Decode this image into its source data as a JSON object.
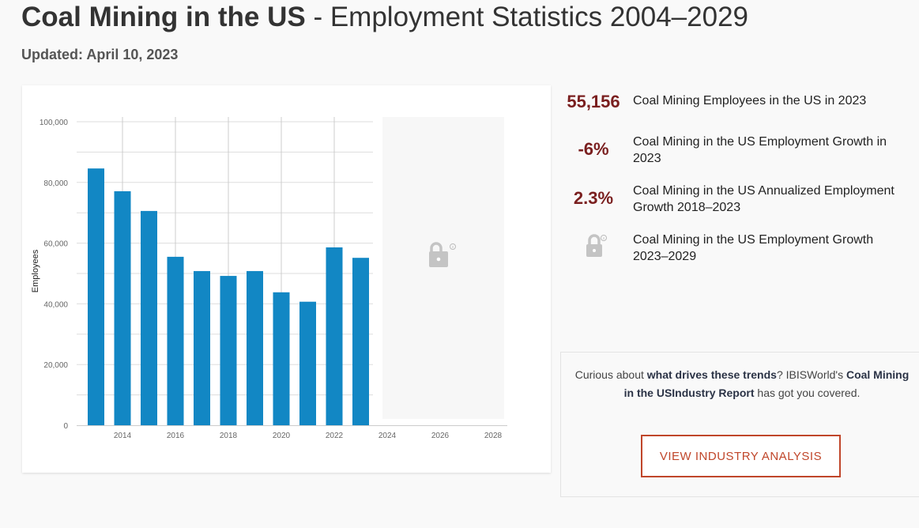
{
  "header": {
    "title_bold": "Coal Mining in the US",
    "title_rest": " - Employment Statistics 2004–2029",
    "updated": "Updated: April 10, 2023"
  },
  "stats": [
    {
      "value": "55,156",
      "label": "Coal Mining Employees in the US in 2023"
    },
    {
      "value": "-6%",
      "label": "Coal Mining in the US Employment Growth in 2023"
    },
    {
      "value": "2.3%",
      "label": "Coal Mining in the US Annualized Employment Growth 2018–2023"
    },
    {
      "value": null,
      "icon": "lock-icon",
      "label": "Coal Mining in the US Employment Growth 2023–2029"
    }
  ],
  "cta": {
    "t1": "Curious about ",
    "b1": "what drives these trends",
    "t2": "? IBISWorld's ",
    "b2": "Coal Mining in the USIndustry Report",
    "t3": " has got you covered.",
    "button": "VIEW INDUSTRY ANALYSIS"
  },
  "colors": {
    "bar": "#1287c4",
    "accent": "#7a1f1f",
    "button": "#c0462a"
  },
  "chart_data": {
    "type": "bar",
    "title": "",
    "xlabel": "",
    "ylabel": "Employees",
    "ylim": [
      0,
      100000
    ],
    "xlim": [
      2012.5,
      2028.5
    ],
    "yticks": [
      "0",
      "20,000",
      "40,000",
      "60,000",
      "80,000",
      "100,000"
    ],
    "ytick_values": [
      0,
      20000,
      40000,
      60000,
      80000,
      100000
    ],
    "xticks": [
      "2014",
      "2016",
      "2018",
      "2020",
      "2022",
      "2024",
      "2026",
      "2028"
    ],
    "categories": [
      2013,
      2014,
      2015,
      2016,
      2017,
      2018,
      2019,
      2020,
      2021,
      2022,
      2023
    ],
    "values": [
      84600,
      77100,
      70600,
      55500,
      50800,
      49200,
      50800,
      43800,
      40700,
      58600,
      55156
    ],
    "locked_range": [
      2024,
      2028
    ],
    "grid": true
  }
}
